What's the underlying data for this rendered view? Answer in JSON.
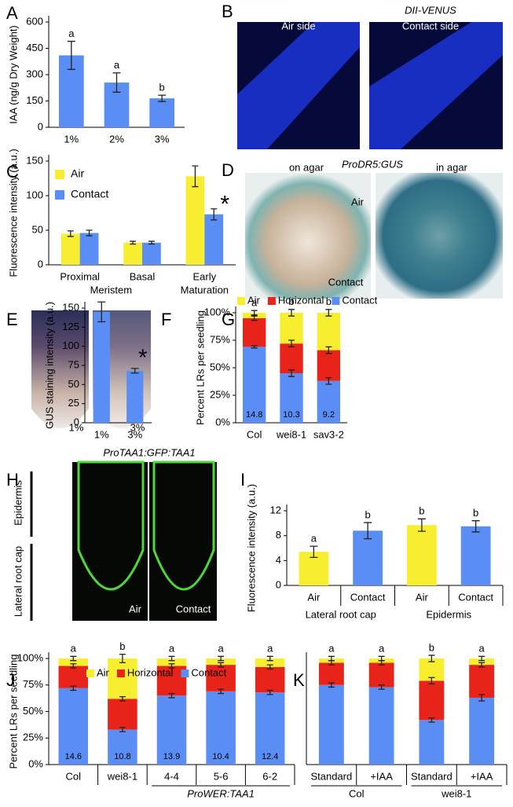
{
  "chart_data": [
    {
      "panel": "A",
      "type": "bar",
      "ylabel": "IAA (ng/g Dry Weight)",
      "categories": [
        "1%",
        "2%",
        "3%"
      ],
      "values": [
        410,
        255,
        165
      ],
      "errors": [
        80,
        55,
        18
      ],
      "letters": [
        "a",
        "a",
        "b"
      ],
      "color": "#5b8ef5",
      "ylim": [
        0,
        600
      ],
      "yticks": [
        0,
        150,
        300,
        450,
        600
      ]
    },
    {
      "panel": "C",
      "type": "grouped_bar",
      "ylabel": "Fluorescence intensity (a.u.)",
      "categories": [
        "Proximal",
        "Basal",
        "Early"
      ],
      "group_labels": [
        "Meristem",
        "Maturation"
      ],
      "series": [
        {
          "name": "Air",
          "color": "#f6ee2e",
          "values": [
            45,
            32,
            128
          ],
          "errors": [
            4,
            2,
            15
          ]
        },
        {
          "name": "Contact",
          "color": "#5b8ef5",
          "values": [
            46,
            32,
            73
          ],
          "errors": [
            4,
            2,
            8
          ]
        }
      ],
      "annotation": "*",
      "legend": "vertical",
      "ylim": [
        0,
        150
      ],
      "yticks": [
        0,
        50,
        100,
        150
      ]
    },
    {
      "panel": "F",
      "type": "bar",
      "ylabel": "GUS staining intensity (a.u.)",
      "categories": [
        "1%",
        "3%"
      ],
      "values": [
        145,
        68
      ],
      "errors": [
        13,
        3
      ],
      "color": "#5b8ef5",
      "annotation": "*",
      "ylim": [
        0,
        150
      ],
      "yticks": [
        0,
        25,
        50,
        75,
        100,
        125,
        150
      ]
    },
    {
      "panel": "G",
      "type": "stacked_bar",
      "ylabel": "Percent LRs per seedling",
      "categories": [
        "Col",
        "wei8-1",
        "sav3-2"
      ],
      "series": [
        {
          "name": "Air",
          "color": "#f6ee2e",
          "values": [
            5,
            28,
            34
          ],
          "errors": [
            2,
            3,
            3
          ]
        },
        {
          "name": "Horizontal",
          "color": "#e8231a",
          "values": [
            26,
            27,
            28
          ],
          "errors": [
            2,
            3,
            3
          ]
        },
        {
          "name": "Contact",
          "color": "#5b8ef5",
          "values": [
            69,
            45,
            38
          ],
          "errors": [
            1,
            3,
            3
          ]
        }
      ],
      "letters": [
        "a",
        "b",
        "b"
      ],
      "counts": [
        14.8,
        10.3,
        9.2
      ],
      "legend": "top",
      "ylim": [
        0,
        100
      ],
      "yticks": [
        {
          "value": 0,
          "label": "0%"
        },
        {
          "value": 25,
          "label": "25%"
        },
        {
          "value": 50,
          "label": "50%"
        },
        {
          "value": 75,
          "label": "75%"
        },
        {
          "value": 100,
          "label": "100%"
        }
      ]
    },
    {
      "panel": "I",
      "type": "bar",
      "ylabel": "Fluorescence intensity (a.u.)",
      "categories": [
        "Air",
        "Contact",
        "Air",
        "Contact"
      ],
      "group_labels": [
        "Lateral root cap",
        "Epidermis"
      ],
      "values": [
        5.4,
        8.8,
        9.7,
        9.5
      ],
      "errors": [
        0.9,
        1.3,
        1.0,
        0.9
      ],
      "letters": [
        "a",
        "b",
        "b",
        "b"
      ],
      "colors": [
        "#f6ee2e",
        "#5b8ef5",
        "#f6ee2e",
        "#5b8ef5"
      ],
      "ylim": [
        0,
        12
      ],
      "yticks": [
        0,
        4,
        8,
        12
      ]
    },
    {
      "panel": "J",
      "type": "stacked_bar",
      "ylabel": "Percent LRs per seedling",
      "categories": [
        "Col",
        "wei8-1",
        "4-4",
        "5-6",
        "6-2"
      ],
      "group_labels": [
        "ProWER:TAA1"
      ],
      "series": [
        {
          "name": "Air",
          "color": "#f6ee2e",
          "values": [
            7,
            38,
            7,
            6,
            8
          ],
          "errors": [
            2,
            4,
            2,
            2,
            2
          ]
        },
        {
          "name": "Horizontal",
          "color": "#e8231a",
          "values": [
            21,
            29,
            28,
            25,
            24
          ],
          "errors": [
            2,
            2,
            2,
            2,
            2
          ]
        },
        {
          "name": "Contact",
          "color": "#5b8ef5",
          "values": [
            72,
            33,
            65,
            69,
            68
          ],
          "errors": [
            2,
            2,
            2,
            2,
            2
          ]
        }
      ],
      "letters": [
        "a",
        "b",
        "a",
        "a",
        "a"
      ],
      "counts": [
        14.6,
        10.8,
        13.9,
        10.4,
        12.4
      ],
      "legend": "top",
      "ylim": [
        0,
        100
      ],
      "yticks": [
        {
          "value": 0,
          "label": "0%"
        },
        {
          "value": 25,
          "label": "25%"
        },
        {
          "value": 50,
          "label": "50%"
        },
        {
          "value": 75,
          "label": "75%"
        },
        {
          "value": 100,
          "label": "100%"
        }
      ]
    },
    {
      "panel": "K",
      "type": "stacked_bar",
      "categories": [
        "Standard",
        "+IAA",
        "Standard",
        "+IAA"
      ],
      "group_labels": [
        "Col",
        "wei8-1"
      ],
      "series": [
        {
          "name": "Air",
          "color": "#f6ee2e",
          "values": [
            4,
            4,
            21,
            6
          ],
          "errors": [
            2,
            2,
            3,
            2
          ]
        },
        {
          "name": "Horizontal",
          "color": "#e8231a",
          "values": [
            21,
            23,
            37,
            31
          ],
          "errors": [
            2,
            2,
            3,
            2
          ]
        },
        {
          "name": "Contact",
          "color": "#5b8ef5",
          "values": [
            75,
            73,
            42,
            63
          ],
          "errors": [
            2,
            2,
            2,
            3
          ]
        }
      ],
      "letters": [
        "a",
        "a",
        "b",
        "a"
      ],
      "ylim": [
        0,
        100
      ]
    }
  ],
  "image_panels": {
    "B": {
      "panel": "B",
      "title": "DII-VENUS",
      "left": "Air side",
      "right": "Contact side"
    },
    "D": {
      "panel": "D",
      "title": "ProDR5:GUS",
      "left": "on agar",
      "right": "in agar",
      "top": "Air",
      "bottom": "Contact"
    },
    "E": {
      "panel": "E",
      "left": "1%",
      "right": "3%"
    },
    "H": {
      "panel": "H",
      "title": "ProTAA1:GFP:TAA1",
      "upper": "Epidermis",
      "lower": "Lateral root cap",
      "left": "Air",
      "right": "Contact"
    }
  }
}
